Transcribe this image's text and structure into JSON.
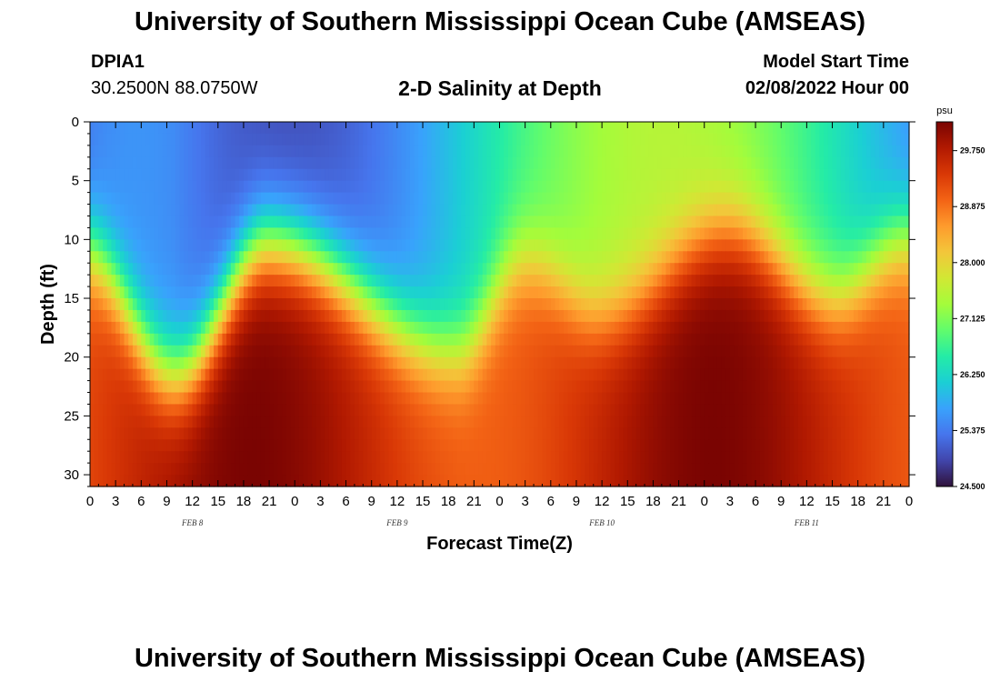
{
  "header": {
    "title": "University of Southern Mississippi Ocean Cube (AMSEAS)",
    "station_id": "DPIA1",
    "coordinates": "30.2500N  88.0750W",
    "subtitle": "2-D Salinity at Depth",
    "model_start_label": "Model Start Time",
    "model_start_value": "02/08/2022 Hour 00"
  },
  "footer": {
    "title": "University of Southern Mississippi Ocean Cube (AMSEAS)"
  },
  "chart_data": {
    "type": "heatmap",
    "title": "2-D Salinity at Depth",
    "xlabel": "Forecast Time(Z)",
    "ylabel": "Depth (ft)",
    "x_unit": "hours since 02/08/2022 00Z",
    "xlim": [
      0,
      96
    ],
    "ylim": [
      0,
      31
    ],
    "x_tick_values": [
      0,
      3,
      6,
      9,
      12,
      15,
      18,
      21,
      24,
      27,
      30,
      33,
      36,
      39,
      42,
      45,
      48,
      51,
      54,
      57,
      60,
      63,
      66,
      69,
      72,
      75,
      78,
      81,
      84,
      87,
      90,
      93,
      96
    ],
    "x_tick_labels": [
      "0",
      "3",
      "6",
      "9",
      "12",
      "15",
      "18",
      "21",
      "0",
      "3",
      "6",
      "9",
      "12",
      "15",
      "18",
      "21",
      "0",
      "3",
      "6",
      "9",
      "12",
      "15",
      "18",
      "21",
      "0",
      "3",
      "6",
      "9",
      "12",
      "15",
      "18",
      "21",
      "0"
    ],
    "day_labels": [
      {
        "label": "FEB 8",
        "hour": 12
      },
      {
        "label": "FEB 9",
        "hour": 36
      },
      {
        "label": "FEB 10",
        "hour": 60
      },
      {
        "label": "FEB 11",
        "hour": 84
      }
    ],
    "y_tick_values": [
      0,
      5,
      10,
      15,
      20,
      25,
      30
    ],
    "y_tick_labels": [
      "0",
      "5",
      "10",
      "15",
      "20",
      "25",
      "30"
    ],
    "colorbar": {
      "unit": "psu",
      "min": 24.5,
      "max": 30.2,
      "tick_values": [
        29.75,
        28.875,
        28.0,
        27.125,
        26.25,
        25.375,
        24.5
      ],
      "tick_labels": [
        "29.750",
        "28.875",
        "28.000",
        "27.125",
        "26.250",
        "25.375",
        "24.500"
      ],
      "colormap": [
        "#30123b",
        "#4145ab",
        "#4675ed",
        "#39a2fc",
        "#1bcfd4",
        "#24eca6",
        "#61fc6c",
        "#a4fc3b",
        "#d1e834",
        "#f3c63a",
        "#fe9b2d",
        "#f36315",
        "#d93806",
        "#b11901",
        "#7a0402"
      ]
    },
    "series": {
      "trough_hours": [
        10,
        43,
        60,
        87
      ],
      "trough_halocline_depth_ft": [
        21.5,
        19.5,
        16.5,
        15
      ],
      "crest_hours": [
        21,
        51,
        75,
        96
      ],
      "crest_halocline_depth_ft": [
        10.5,
        12,
        9.5,
        10
      ],
      "surface_salinity_psu_range": [
        25.0,
        27.5
      ],
      "bottom_salinity_psu_range": [
        28.9,
        30.2
      ]
    }
  }
}
